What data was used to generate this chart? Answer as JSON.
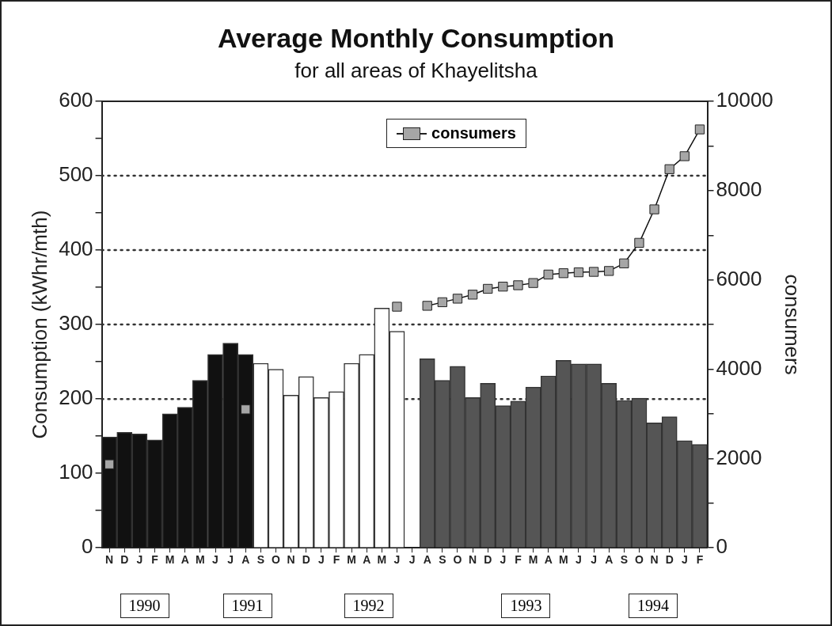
{
  "chart_data": {
    "type": "bar",
    "title": "Average Monthly Consumption",
    "subtitle": "for all areas of Khayelitsha",
    "ylabel": "Consumption (kWhr/mth)",
    "y2label": "consumers",
    "categories": [
      "N",
      "D",
      "J",
      "F",
      "M",
      "A",
      "M",
      "J",
      "J",
      "A",
      "S",
      "O",
      "N",
      "D",
      "J",
      "F",
      "M",
      "A",
      "M",
      "J",
      "J",
      "A",
      "S",
      "O",
      "N",
      "D",
      "J",
      "F",
      "M",
      "A",
      "M",
      "J",
      "J",
      "A",
      "S",
      "O",
      "N",
      "D",
      "J",
      "F"
    ],
    "series": [
      {
        "values": [
          149,
          155,
          153,
          145,
          180,
          189,
          225,
          260,
          275,
          260,
          248,
          240,
          205,
          230,
          202,
          210,
          248,
          260,
          322,
          291,
          null,
          254,
          225,
          244,
          202,
          221,
          191,
          197,
          216,
          231,
          252,
          247,
          247,
          221,
          198,
          201,
          168,
          176,
          144,
          139
        ],
        "colors": [
          "#111111",
          "#111111",
          "#111111",
          "#111111",
          "#111111",
          "#111111",
          "#111111",
          "#111111",
          "#111111",
          "#111111",
          "#ffffff",
          "#ffffff",
          "#ffffff",
          "#ffffff",
          "#ffffff",
          "#ffffff",
          "#ffffff",
          "#ffffff",
          "#ffffff",
          "#ffffff",
          "#ffffff",
          "#555555",
          "#555555",
          "#555555",
          "#555555",
          "#555555",
          "#555555",
          "#555555",
          "#555555",
          "#555555",
          "#555555",
          "#555555",
          "#555555",
          "#555555",
          "#555555",
          "#555555",
          "#555555",
          "#555555",
          "#555555",
          "#555555"
        ]
      },
      {
        "type": "line",
        "name": "consumers",
        "axis": "y2",
        "color": "#a6a6a6",
        "marker": "square",
        "line_style": "solid",
        "values": [
          1870,
          null,
          null,
          null,
          null,
          null,
          null,
          null,
          null,
          3100,
          null,
          null,
          null,
          null,
          null,
          null,
          null,
          null,
          null,
          5400,
          null,
          5420,
          5500,
          5580,
          5670,
          5800,
          5850,
          5880,
          5930,
          6120,
          6150,
          6170,
          6180,
          6200,
          6370,
          6830,
          7580,
          8480,
          8770,
          9370
        ]
      }
    ],
    "ylim": [
      0,
      600
    ],
    "yticks": [
      0,
      {
        "value": 50,
        "label": null
      },
      100,
      {
        "value": 150,
        "label": null
      },
      200,
      {
        "value": 250,
        "label": null
      },
      300,
      {
        "value": 350,
        "label": null
      },
      400,
      {
        "value": 450,
        "label": null
      },
      500,
      {
        "value": 550,
        "label": null
      },
      600
    ],
    "y2lim": [
      0,
      10000
    ],
    "y2ticks": [
      0,
      {
        "value": 1000,
        "label": null
      },
      2000,
      {
        "value": 3000,
        "label": null
      },
      4000,
      {
        "value": 5000,
        "label": null
      },
      6000,
      {
        "value": 7000,
        "label": null
      },
      8000,
      {
        "value": 9000,
        "label": null
      },
      10000
    ],
    "ref_lines": [
      {
        "axis": "y",
        "value": 200,
        "line_style": "dotted",
        "color": "#333333"
      },
      {
        "axis": "y",
        "value": 300,
        "line_style": "dotted",
        "color": "#333333"
      },
      {
        "axis": "y",
        "value": 400,
        "line_style": "dotted",
        "color": "#333333"
      },
      {
        "axis": "y",
        "value": 500,
        "line_style": "dotted",
        "color": "#333333"
      }
    ],
    "annotations": [
      "1990",
      "1991",
      "1992",
      "1993",
      "1994"
    ],
    "legend": "top right",
    "grid": false
  }
}
